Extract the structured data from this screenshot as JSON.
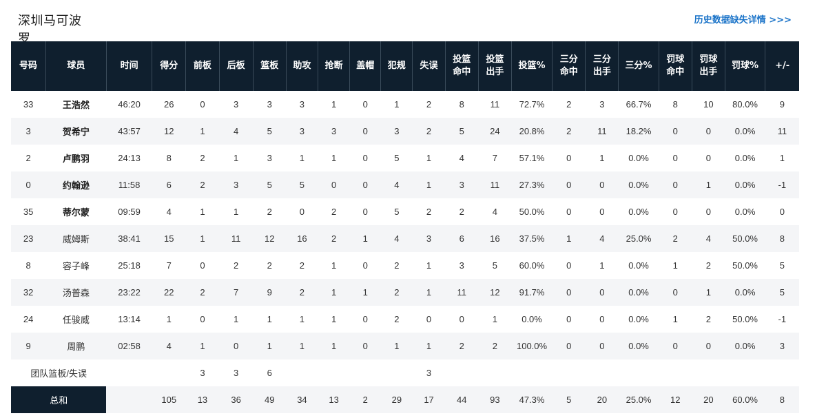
{
  "header": {
    "team_name": "深圳马可波罗",
    "history_link": "历史数据缺失详情 >>>"
  },
  "table": {
    "columns": [
      {
        "key": "num",
        "label": "号码",
        "width": 50
      },
      {
        "key": "name",
        "label": "球员",
        "width": 88
      },
      {
        "key": "time",
        "label": "时间",
        "width": 66
      },
      {
        "key": "pts",
        "label": "得分",
        "width": 49
      },
      {
        "key": "oreb",
        "label": "前板",
        "width": 48
      },
      {
        "key": "dreb",
        "label": "后板",
        "width": 49
      },
      {
        "key": "reb",
        "label": "篮板",
        "width": 48
      },
      {
        "key": "ast",
        "label": "助攻",
        "width": 46
      },
      {
        "key": "stl",
        "label": "抢断",
        "width": 46
      },
      {
        "key": "blk",
        "label": "盖帽",
        "width": 45
      },
      {
        "key": "pf",
        "label": "犯规",
        "width": 46
      },
      {
        "key": "to",
        "label": "失误",
        "width": 47
      },
      {
        "key": "fgm",
        "label": "投篮\n命中",
        "width": 48
      },
      {
        "key": "fga",
        "label": "投篮\n出手",
        "width": 48
      },
      {
        "key": "fgp",
        "label": "投篮%",
        "width": 59
      },
      {
        "key": "tpm",
        "label": "三分\n命中",
        "width": 48
      },
      {
        "key": "tpa",
        "label": "三分\n出手",
        "width": 48
      },
      {
        "key": "tpp",
        "label": "三分%",
        "width": 58
      },
      {
        "key": "ftm",
        "label": "罚球\n命中",
        "width": 48
      },
      {
        "key": "fta",
        "label": "罚球\n出手",
        "width": 48
      },
      {
        "key": "ftp",
        "label": "罚球%",
        "width": 58
      },
      {
        "key": "pm",
        "label": "+/-",
        "width": 49
      }
    ],
    "players": [
      {
        "num": "33",
        "name": "王浩然",
        "starter": true,
        "time": "46:20",
        "pts": "26",
        "oreb": "0",
        "dreb": "3",
        "reb": "3",
        "ast": "3",
        "stl": "1",
        "blk": "0",
        "pf": "1",
        "to": "2",
        "fgm": "8",
        "fga": "11",
        "fgp": "72.7%",
        "tpm": "2",
        "tpa": "3",
        "tpp": "66.7%",
        "ftm": "8",
        "fta": "10",
        "ftp": "80.0%",
        "pm": "9"
      },
      {
        "num": "3",
        "name": "贺希宁",
        "starter": true,
        "time": "43:57",
        "pts": "12",
        "oreb": "1",
        "dreb": "4",
        "reb": "5",
        "ast": "3",
        "stl": "3",
        "blk": "0",
        "pf": "3",
        "to": "2",
        "fgm": "5",
        "fga": "24",
        "fgp": "20.8%",
        "tpm": "2",
        "tpa": "11",
        "tpp": "18.2%",
        "ftm": "0",
        "fta": "0",
        "ftp": "0.0%",
        "pm": "11"
      },
      {
        "num": "2",
        "name": "卢鹏羽",
        "starter": true,
        "time": "24:13",
        "pts": "8",
        "oreb": "2",
        "dreb": "1",
        "reb": "3",
        "ast": "1",
        "stl": "1",
        "blk": "0",
        "pf": "5",
        "to": "1",
        "fgm": "4",
        "fga": "7",
        "fgp": "57.1%",
        "tpm": "0",
        "tpa": "1",
        "tpp": "0.0%",
        "ftm": "0",
        "fta": "0",
        "ftp": "0.0%",
        "pm": "1"
      },
      {
        "num": "0",
        "name": "约翰逊",
        "starter": true,
        "time": "11:58",
        "pts": "6",
        "oreb": "2",
        "dreb": "3",
        "reb": "5",
        "ast": "5",
        "stl": "0",
        "blk": "0",
        "pf": "4",
        "to": "1",
        "fgm": "3",
        "fga": "11",
        "fgp": "27.3%",
        "tpm": "0",
        "tpa": "0",
        "tpp": "0.0%",
        "ftm": "0",
        "fta": "1",
        "ftp": "0.0%",
        "pm": "-1"
      },
      {
        "num": "35",
        "name": "蒂尔蒙",
        "starter": true,
        "time": "09:59",
        "pts": "4",
        "oreb": "1",
        "dreb": "1",
        "reb": "2",
        "ast": "0",
        "stl": "2",
        "blk": "0",
        "pf": "5",
        "to": "2",
        "fgm": "2",
        "fga": "4",
        "fgp": "50.0%",
        "tpm": "0",
        "tpa": "0",
        "tpp": "0.0%",
        "ftm": "0",
        "fta": "0",
        "ftp": "0.0%",
        "pm": "0"
      },
      {
        "num": "23",
        "name": "威姆斯",
        "starter": false,
        "time": "38:41",
        "pts": "15",
        "oreb": "1",
        "dreb": "11",
        "reb": "12",
        "ast": "16",
        "stl": "2",
        "blk": "1",
        "pf": "4",
        "to": "3",
        "fgm": "6",
        "fga": "16",
        "fgp": "37.5%",
        "tpm": "1",
        "tpa": "4",
        "tpp": "25.0%",
        "ftm": "2",
        "fta": "4",
        "ftp": "50.0%",
        "pm": "8"
      },
      {
        "num": "8",
        "name": "容子峰",
        "starter": false,
        "time": "25:18",
        "pts": "7",
        "oreb": "0",
        "dreb": "2",
        "reb": "2",
        "ast": "2",
        "stl": "1",
        "blk": "0",
        "pf": "2",
        "to": "1",
        "fgm": "3",
        "fga": "5",
        "fgp": "60.0%",
        "tpm": "0",
        "tpa": "1",
        "tpp": "0.0%",
        "ftm": "1",
        "fta": "2",
        "ftp": "50.0%",
        "pm": "5"
      },
      {
        "num": "32",
        "name": "汤普森",
        "starter": false,
        "time": "23:22",
        "pts": "22",
        "oreb": "2",
        "dreb": "7",
        "reb": "9",
        "ast": "2",
        "stl": "1",
        "blk": "1",
        "pf": "2",
        "to": "1",
        "fgm": "11",
        "fga": "12",
        "fgp": "91.7%",
        "tpm": "0",
        "tpa": "0",
        "tpp": "0.0%",
        "ftm": "0",
        "fta": "1",
        "ftp": "0.0%",
        "pm": "5"
      },
      {
        "num": "24",
        "name": "任骏威",
        "starter": false,
        "time": "13:14",
        "pts": "1",
        "oreb": "0",
        "dreb": "1",
        "reb": "1",
        "ast": "1",
        "stl": "1",
        "blk": "0",
        "pf": "2",
        "to": "0",
        "fgm": "0",
        "fga": "1",
        "fgp": "0.0%",
        "tpm": "0",
        "tpa": "0",
        "tpp": "0.0%",
        "ftm": "1",
        "fta": "2",
        "ftp": "50.0%",
        "pm": "-1"
      },
      {
        "num": "9",
        "name": "周鹏",
        "starter": false,
        "time": "02:58",
        "pts": "4",
        "oreb": "1",
        "dreb": "0",
        "reb": "1",
        "ast": "1",
        "stl": "1",
        "blk": "0",
        "pf": "1",
        "to": "1",
        "fgm": "2",
        "fga": "2",
        "fgp": "100.0%",
        "tpm": "0",
        "tpa": "0",
        "tpp": "0.0%",
        "ftm": "0",
        "fta": "0",
        "ftp": "0.0%",
        "pm": "3"
      }
    ],
    "team_row": {
      "label": "团队篮板/失误",
      "oreb": "3",
      "dreb": "3",
      "reb": "6",
      "to": "3"
    },
    "total_row": {
      "label": "总和",
      "time": "",
      "pts": "105",
      "oreb": "13",
      "dreb": "36",
      "reb": "49",
      "ast": "34",
      "stl": "13",
      "blk": "2",
      "pf": "29",
      "to": "17",
      "fgm": "44",
      "fga": "93",
      "fgp": "47.3%",
      "tpm": "5",
      "tpa": "20",
      "tpp": "25.0%",
      "ftm": "12",
      "fta": "20",
      "ftp": "60.0%",
      "pm": "8"
    }
  }
}
